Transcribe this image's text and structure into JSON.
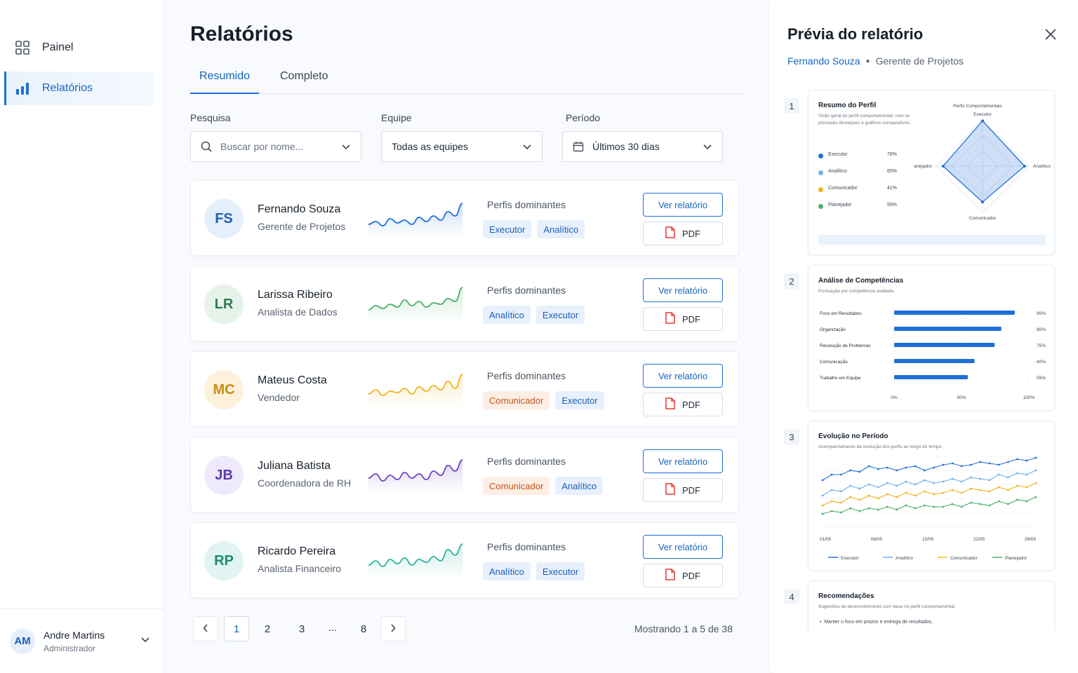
{
  "sidebar": {
    "items": [
      {
        "label": "Painel",
        "icon": "grid-icon"
      },
      {
        "label": "Relatórios",
        "icon": "bar-chart-icon"
      }
    ],
    "user": {
      "initials": "AM",
      "name": "Andre Martins",
      "role": "Administrador"
    }
  },
  "main": {
    "title": "Relatórios",
    "tabs": [
      {
        "label": "Resumido"
      },
      {
        "label": "Completo"
      }
    ],
    "filters": {
      "search": {
        "label": "Pesquisa",
        "placeholder": "Buscar por nome..."
      },
      "team": {
        "label": "Equipe",
        "value": "Todas as equipes"
      },
      "period": {
        "label": "Período",
        "value": "Últimos 30 dias"
      }
    },
    "profiles_label": "Perfis dominantes",
    "view_label": "Ver relatório",
    "pdf_label": "PDF",
    "people": [
      {
        "initials": "FS",
        "name": "Fernando Souza",
        "role": "Gerente de Projetos",
        "color": "#1d5fb8",
        "bg": "#e5eefb",
        "spark": "#1e6fd9",
        "chips": [
          {
            "label": "Executor",
            "tone": "blue"
          },
          {
            "label": "Analítico",
            "tone": "blue"
          }
        ]
      },
      {
        "initials": "LR",
        "name": "Larissa Ribeiro",
        "role": "Analista de Dados",
        "color": "#2e7d4f",
        "bg": "#e6f3ea",
        "spark": "#4caf6a",
        "chips": [
          {
            "label": "Analítico",
            "tone": "blue"
          },
          {
            "label": "Executor",
            "tone": "blue"
          }
        ]
      },
      {
        "initials": "MC",
        "name": "Mateus Costa",
        "role": "Vendedor",
        "color": "#c98a12",
        "bg": "#fdf1dc",
        "spark": "#f2b31e",
        "chips": [
          {
            "label": "Comunicador",
            "tone": "orange"
          },
          {
            "label": "Executor",
            "tone": "blue"
          }
        ]
      },
      {
        "initials": "JB",
        "name": "Juliana Batista",
        "role": "Coordenadora de RH",
        "color": "#5b3aa8",
        "bg": "#efeafb",
        "spark": "#6a44c2",
        "chips": [
          {
            "label": "Comunicador",
            "tone": "orange"
          },
          {
            "label": "Analítico",
            "tone": "blue"
          }
        ]
      },
      {
        "initials": "RP",
        "name": "Ricardo Pereira",
        "role": "Analista Financeiro",
        "color": "#1d8a7a",
        "bg": "#e2f4f1",
        "spark": "#2bb3a0",
        "chips": [
          {
            "label": "Analítico",
            "tone": "blue"
          },
          {
            "label": "Executor",
            "tone": "blue"
          }
        ]
      }
    ],
    "pagination": {
      "pages": [
        "1",
        "2",
        "3",
        "...",
        "8"
      ],
      "active": "1",
      "info": "Mostrando 1 a 5 de 38"
    }
  },
  "preview": {
    "title": "Prévia do relatório",
    "person": "Fernando Souza",
    "role": "Gerente de Projetos",
    "sections": [
      {
        "num": "1",
        "title": "Resumo do Perfil",
        "desc": "Visão geral do perfil comportamental, com os principais destaques e gráficos comparativos.",
        "radar_title": "Perfis Comportamentais",
        "legend": [
          {
            "label": "Executor",
            "value": "78%",
            "color": "#1e6fd9"
          },
          {
            "label": "Analítico",
            "value": "65%",
            "color": "#6fb0e8"
          },
          {
            "label": "Comunicador",
            "value": "41%",
            "color": "#f2b31e"
          },
          {
            "label": "Planejador",
            "value": "55%",
            "color": "#4caf6a"
          }
        ],
        "axes": [
          "Executor",
          "Analítico",
          "Comunicador",
          "Planejador"
        ]
      },
      {
        "num": "2",
        "title": "Análise de Competências",
        "desc": "Pontuação por competência avaliada.",
        "bars": [
          {
            "label": "Foco em Resultados",
            "value": 90,
            "text": "90%"
          },
          {
            "label": "Organização",
            "value": 80,
            "text": "80%"
          },
          {
            "label": "Resolução de Problemas",
            "value": 75,
            "text": "75%"
          },
          {
            "label": "Comunicação",
            "value": 60,
            "text": "60%"
          },
          {
            "label": "Trabalho em Equipe",
            "value": 55,
            "text": "55%"
          }
        ],
        "ticks": [
          "0%",
          "50%",
          "100%"
        ]
      },
      {
        "num": "3",
        "title": "Evolução no Período",
        "desc": "Acompanhamento da evolução dos perfis ao longo do tempo.",
        "x_ticks": [
          "01/05",
          "08/05",
          "15/05",
          "22/05",
          "29/05"
        ],
        "series": [
          {
            "name": "Executor",
            "color": "#1e6fd9"
          },
          {
            "name": "Analítico",
            "color": "#6fb0e8"
          },
          {
            "name": "Comunicador",
            "color": "#f2b31e"
          },
          {
            "name": "Planejador",
            "color": "#4caf6a"
          }
        ]
      },
      {
        "num": "4",
        "title": "Recomendações",
        "desc": "Sugestões de desenvolvimento com base no perfil comportamental.",
        "bullet": "Manter o foco em prazos e entrega de resultados."
      }
    ]
  }
}
